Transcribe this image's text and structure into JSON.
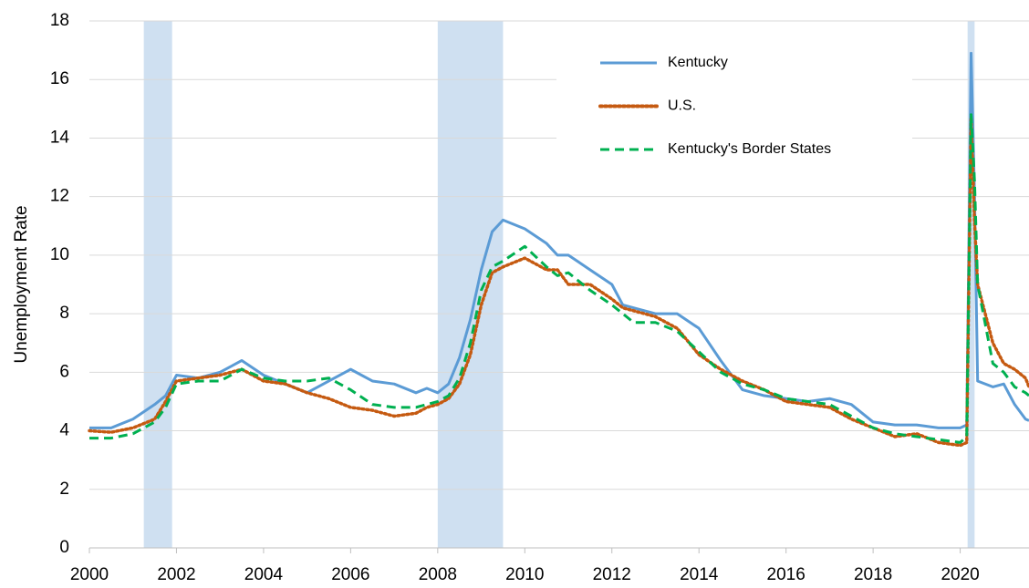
{
  "chart_data": {
    "type": "line",
    "y_label": "Unemployment Rate",
    "x": [
      2000,
      2000.5,
      2001,
      2001.5,
      2001.75,
      2002,
      2002.5,
      2003,
      2003.5,
      2004,
      2004.5,
      2005,
      2005.5,
      2006,
      2006.5,
      2007,
      2007.5,
      2007.75,
      2008,
      2008.25,
      2008.5,
      2008.75,
      2009,
      2009.25,
      2009.5,
      2010,
      2010.5,
      2010.75,
      2011,
      2011.5,
      2012,
      2012.25,
      2012.5,
      2013,
      2013.5,
      2014,
      2014.5,
      2015,
      2015.5,
      2016,
      2016.5,
      2017,
      2017.5,
      2018,
      2018.5,
      2019,
      2019.5,
      2020,
      2020.15,
      2020.25,
      2020.33,
      2020.4,
      2020.75,
      2021,
      2021.25,
      2021.5,
      2021.58
    ],
    "series": [
      {
        "name": "Kentucky",
        "color": "#5b9bd5",
        "style": "solid",
        "values": [
          4.1,
          4.1,
          4.4,
          4.9,
          5.2,
          5.9,
          5.8,
          6.0,
          6.4,
          5.9,
          5.6,
          5.3,
          5.7,
          6.1,
          5.7,
          5.6,
          5.3,
          5.45,
          5.3,
          5.6,
          6.5,
          7.8,
          9.5,
          10.8,
          11.2,
          10.9,
          10.4,
          10.0,
          10.0,
          9.5,
          9.0,
          8.3,
          8.2,
          8.0,
          8.0,
          7.5,
          6.4,
          5.4,
          5.2,
          5.1,
          5.0,
          5.1,
          4.9,
          4.3,
          4.2,
          4.2,
          4.1,
          4.1,
          4.2,
          16.9,
          12.0,
          5.7,
          5.5,
          5.6,
          4.9,
          4.4,
          4.35
        ]
      },
      {
        "name": "U.S.",
        "color": "#c55a11",
        "style": "dotted",
        "values": [
          4.0,
          3.95,
          4.1,
          4.4,
          5.0,
          5.7,
          5.8,
          5.9,
          6.1,
          5.7,
          5.6,
          5.3,
          5.1,
          4.8,
          4.7,
          4.5,
          4.6,
          4.8,
          4.9,
          5.1,
          5.6,
          6.6,
          8.3,
          9.4,
          9.6,
          9.9,
          9.5,
          9.5,
          9.0,
          9.0,
          8.5,
          8.2,
          8.1,
          7.9,
          7.5,
          6.6,
          6.1,
          5.7,
          5.4,
          5.0,
          4.9,
          4.8,
          4.4,
          4.1,
          3.8,
          3.9,
          3.6,
          3.5,
          3.6,
          14.7,
          11.1,
          9.0,
          7.0,
          6.3,
          6.1,
          5.8,
          5.5
        ]
      },
      {
        "name": "Kentucky's Border States",
        "color": "#00b050",
        "style": "dashed",
        "values": [
          3.75,
          3.75,
          3.9,
          4.3,
          4.8,
          5.6,
          5.7,
          5.7,
          6.1,
          5.8,
          5.7,
          5.7,
          5.8,
          5.4,
          4.9,
          4.8,
          4.8,
          4.9,
          5.0,
          5.2,
          5.8,
          7.0,
          8.8,
          9.6,
          9.8,
          10.3,
          9.6,
          9.3,
          9.4,
          8.8,
          8.3,
          8.0,
          7.7,
          7.7,
          7.4,
          6.7,
          6.0,
          5.6,
          5.4,
          5.1,
          5.0,
          4.9,
          4.5,
          4.1,
          3.9,
          3.8,
          3.7,
          3.6,
          3.8,
          14.8,
          12.5,
          9.0,
          6.3,
          6.0,
          5.5,
          5.3,
          5.2
        ]
      }
    ],
    "recessions": [
      [
        2001.25,
        2001.9
      ],
      [
        2008.0,
        2009.5
      ],
      [
        2020.17,
        2020.33
      ]
    ],
    "recession_color": "#cfe0f1",
    "xlim": [
      2000,
      2021.58
    ],
    "xticks": [
      2000,
      2002,
      2004,
      2006,
      2008,
      2010,
      2012,
      2014,
      2016,
      2018,
      2020
    ],
    "ylim": [
      0,
      18
    ],
    "yticks": [
      0,
      2,
      4,
      6,
      8,
      10,
      12,
      14,
      16,
      18
    ],
    "grid": true,
    "legend": "upper right"
  }
}
